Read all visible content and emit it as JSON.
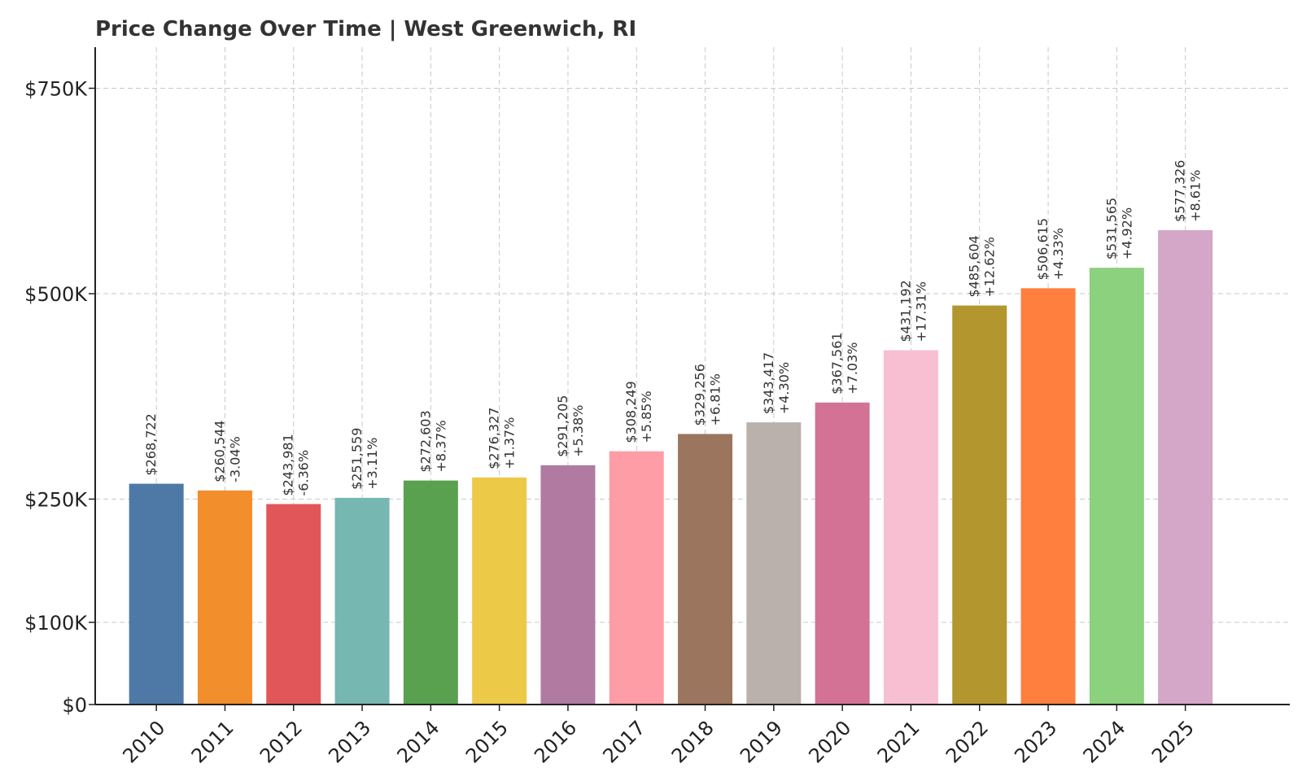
{
  "chart_data": {
    "type": "bar",
    "title": "Price Change Over Time | West Greenwich, RI",
    "xlabel": "",
    "ylabel": "",
    "categories": [
      "2010",
      "2011",
      "2012",
      "2013",
      "2014",
      "2015",
      "2016",
      "2017",
      "2018",
      "2019",
      "2020",
      "2021",
      "2022",
      "2023",
      "2024",
      "2025"
    ],
    "values": [
      268722,
      260544,
      243981,
      251559,
      272603,
      276327,
      291205,
      308249,
      329256,
      343417,
      367561,
      431192,
      485604,
      506615,
      531565,
      577326
    ],
    "value_labels": [
      "$268,722",
      "$260,544",
      "$243,981",
      "$251,559",
      "$272,603",
      "$276,327",
      "$291,205",
      "$308,249",
      "$329,256",
      "$343,417",
      "$367,561",
      "$431,192",
      "$485,604",
      "$506,615",
      "$531,565",
      "$577,326"
    ],
    "change_labels": [
      "",
      "-3.04%",
      "-6.36%",
      "+3.11%",
      "+8.37%",
      "+1.37%",
      "+5.38%",
      "+5.85%",
      "+6.81%",
      "+4.30%",
      "+7.03%",
      "+17.31%",
      "+12.62%",
      "+4.33%",
      "+4.92%",
      "+8.61%"
    ],
    "colors": [
      "#4e79a7",
      "#f28e2b",
      "#e15759",
      "#76b7b2",
      "#59a14f",
      "#edc948",
      "#b07aa1",
      "#ff9da7",
      "#9c755f",
      "#bab0ac",
      "#d37295",
      "#f8bfd2",
      "#b3962e",
      "#ff7f3f",
      "#8cd17d",
      "#d4a6c8"
    ],
    "ylim": [
      0,
      800000
    ],
    "yticks": [
      0,
      100000,
      250000,
      500000,
      750000
    ],
    "ytick_labels": [
      "$0",
      "$100K",
      "$250K",
      "$500K",
      "$750K"
    ],
    "grid": true,
    "legend": "none"
  }
}
